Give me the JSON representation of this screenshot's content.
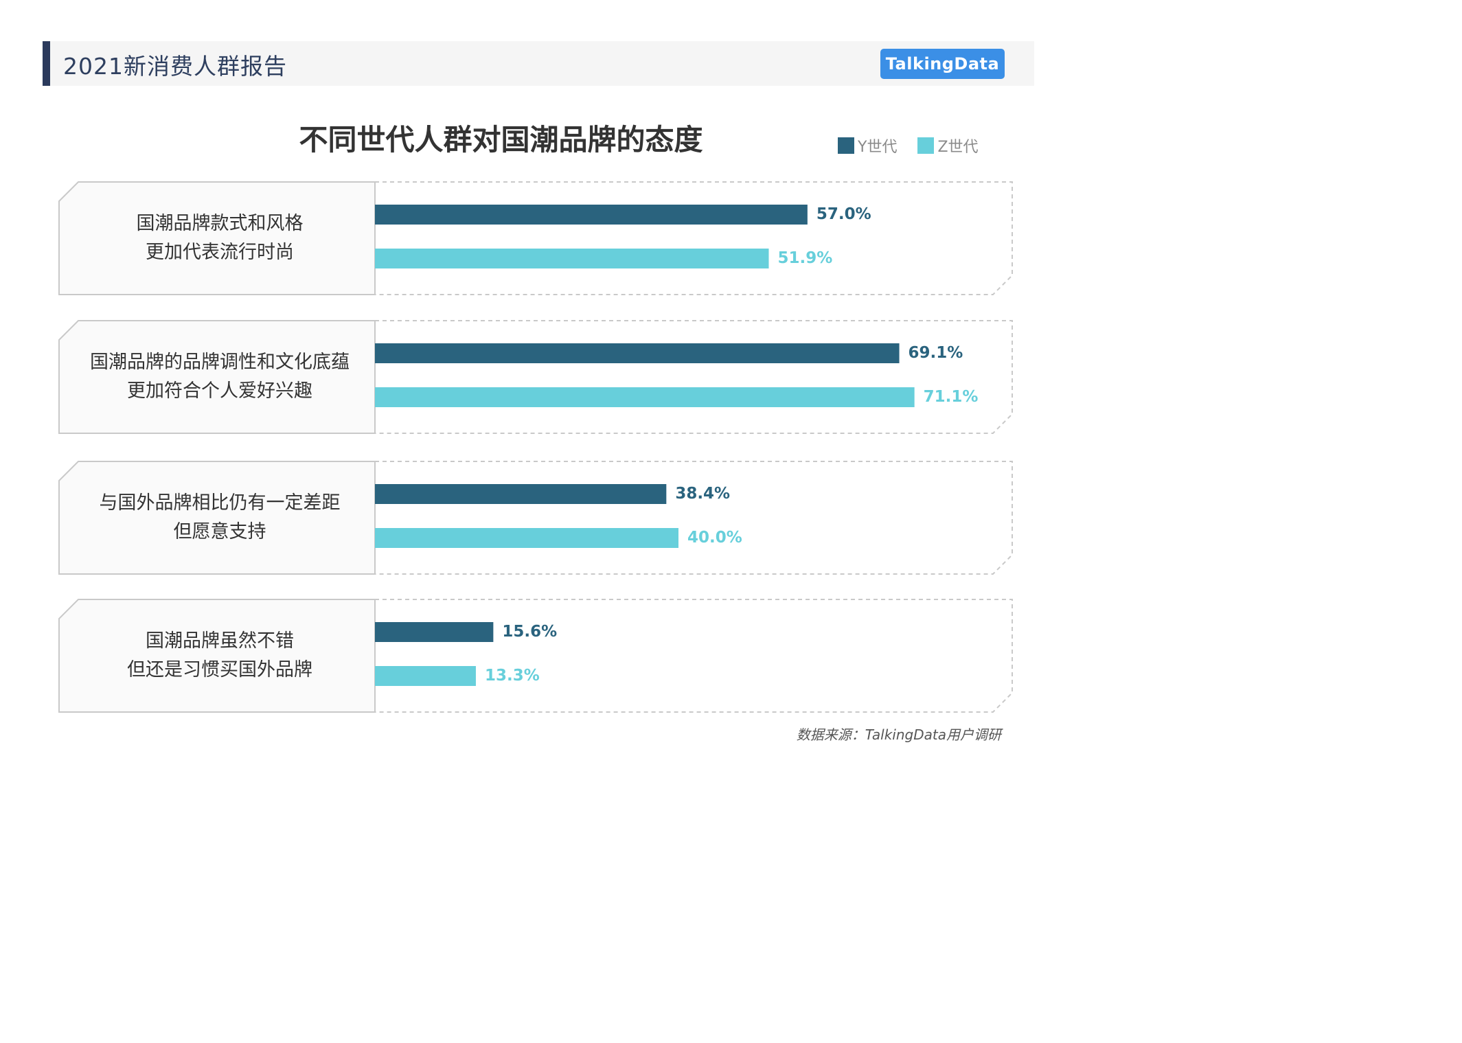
{
  "header": {
    "report_title": "2021新消费人群报告",
    "brand": "TalkingData"
  },
  "colors": {
    "series_y": "#2a637e",
    "series_z": "#67cfdb",
    "header_accent": "#2b3a5c",
    "brand_bg": "#3b8fe6"
  },
  "chart_data": {
    "type": "bar",
    "orientation": "horizontal",
    "title": "不同世代人群对国潮品牌的态度",
    "legend_position": "top-right",
    "grid": false,
    "xlim": [
      0,
      100
    ],
    "categories": [
      [
        "国潮品牌款式和风格",
        "更加代表流行时尚"
      ],
      [
        "国潮品牌的品牌调性和文化底蕴",
        "更加符合个人爱好兴趣"
      ],
      [
        "与国外品牌相比仍有一定差距",
        "但愿意支持"
      ],
      [
        "国潮品牌虽然不错",
        "但还是习惯买国外品牌"
      ]
    ],
    "series": [
      {
        "name": "Y世代",
        "values": [
          57.0,
          69.1,
          38.4,
          15.6
        ],
        "labels": [
          "57.0%",
          "69.1%",
          "38.4%",
          "15.6%"
        ]
      },
      {
        "name": "Z世代",
        "values": [
          51.9,
          71.1,
          40.0,
          13.3
        ],
        "labels": [
          "51.9%",
          "71.1%",
          "40.0%",
          "13.3%"
        ]
      }
    ]
  },
  "footer": {
    "source": "数据来源：TalkingData用户调研"
  }
}
